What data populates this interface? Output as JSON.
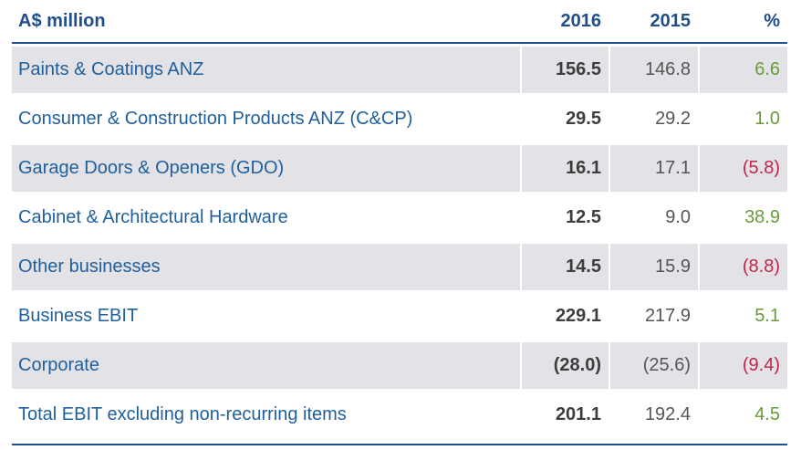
{
  "header": {
    "label": "A$ million",
    "col_2016": "2016",
    "col_2015": "2015",
    "col_pct": "%"
  },
  "rows": [
    {
      "label": "Paints & Coatings ANZ",
      "v2016": "156.5",
      "v2015": "146.8",
      "pct": "6.6",
      "pct_status": "positive"
    },
    {
      "label": "Consumer & Construction Products ANZ (C&CP)",
      "v2016": "29.5",
      "v2015": "29.2",
      "pct": "1.0",
      "pct_status": "positive"
    },
    {
      "label": "Garage Doors & Openers (GDO)",
      "v2016": "16.1",
      "v2015": "17.1",
      "pct": "(5.8)",
      "pct_status": "negative"
    },
    {
      "label": "Cabinet & Architectural Hardware",
      "v2016": "12.5",
      "v2015": "9.0",
      "pct": "38.9",
      "pct_status": "positive"
    },
    {
      "label": "Other businesses",
      "v2016": "14.5",
      "v2015": "15.9",
      "pct": "(8.8)",
      "pct_status": "negative"
    },
    {
      "label": "Business EBIT",
      "v2016": "229.1",
      "v2015": "217.9",
      "pct": "5.1",
      "pct_status": "positive"
    },
    {
      "label": "Corporate",
      "v2016": "(28.0)",
      "v2015": "(25.6)",
      "pct": "(9.4)",
      "pct_status": "negative"
    },
    {
      "label": "Total EBIT excluding non-recurring items",
      "v2016": "201.1",
      "v2015": "192.4",
      "pct": "4.5",
      "pct_status": "positive"
    }
  ],
  "colors": {
    "header_text": "#1f4e8c",
    "label_text": "#1f5f9e",
    "positive": "#6a9a3a",
    "negative": "#c0264a",
    "row_shade": "#e3e2e6"
  }
}
